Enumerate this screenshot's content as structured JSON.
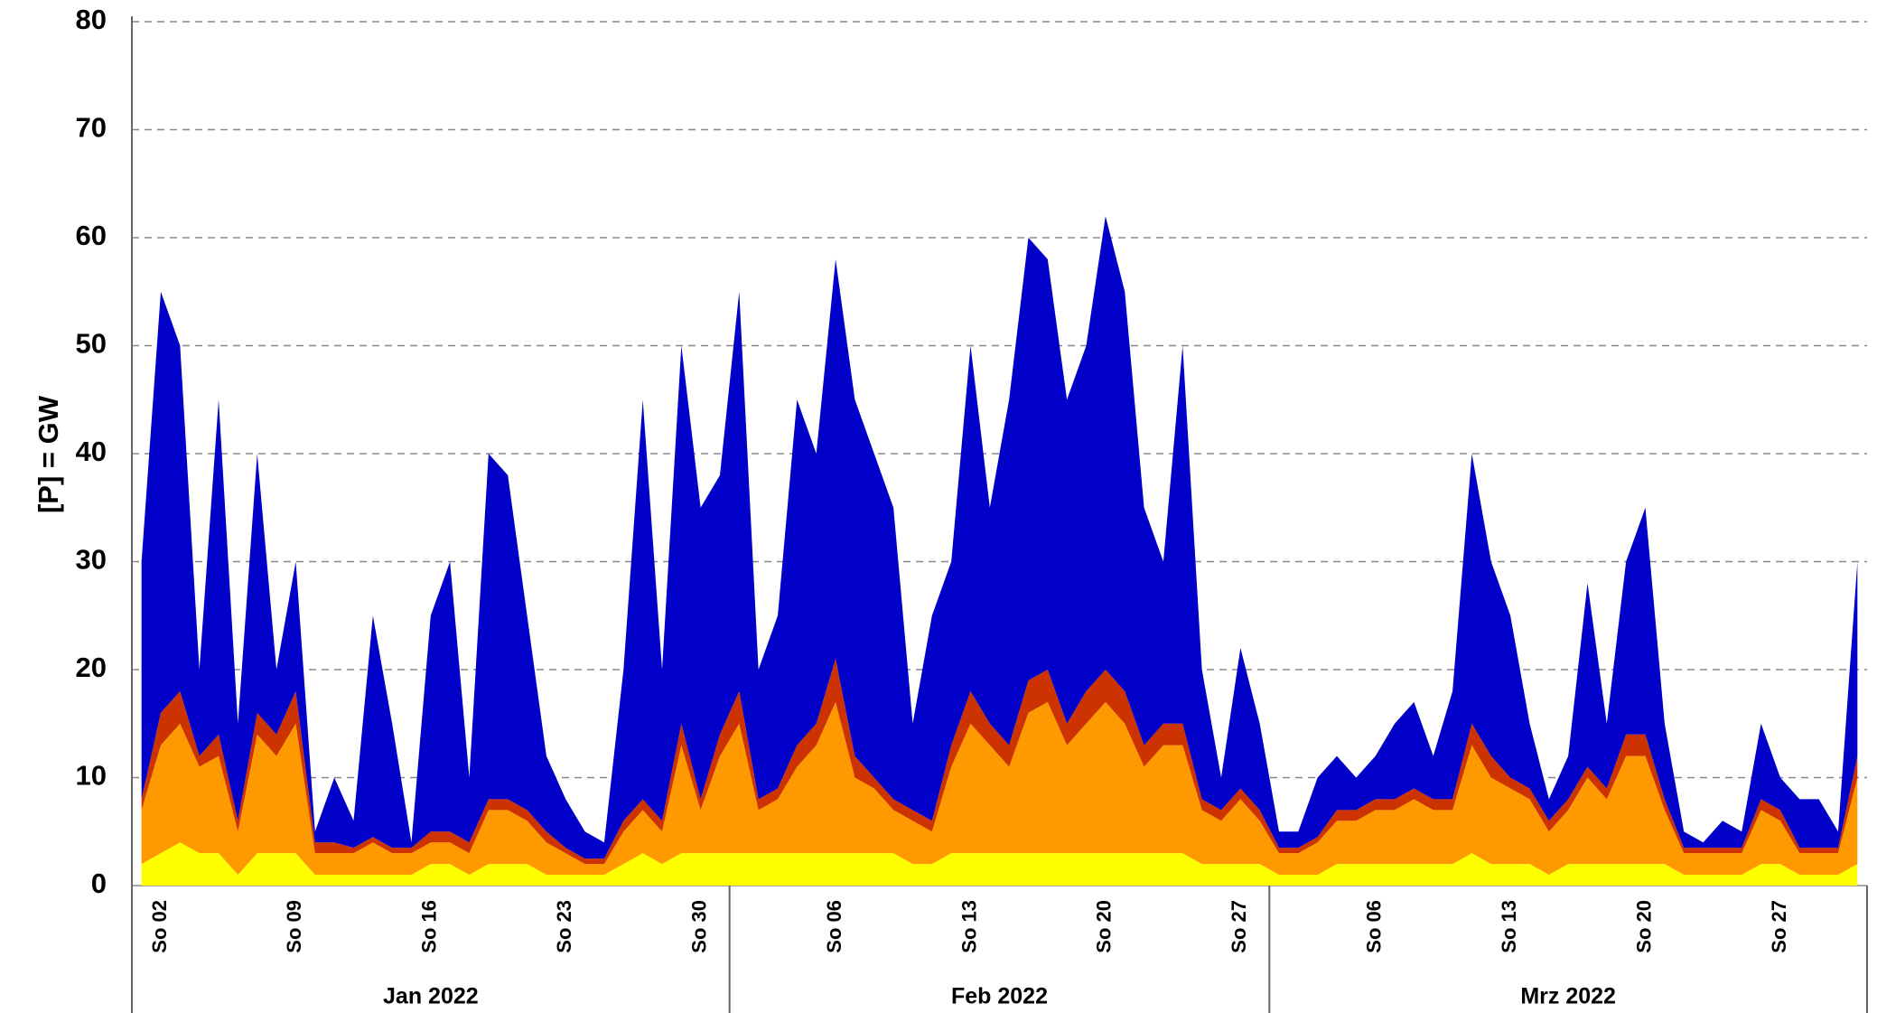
{
  "chart_data": {
    "type": "stacked_area",
    "y_title": "[P]  = GW",
    "x": [
      "2022-01-01",
      "2022-01-02",
      "2022-01-03",
      "2022-01-04",
      "2022-01-05",
      "2022-01-06",
      "2022-01-07",
      "2022-01-08",
      "2022-01-09",
      "2022-01-10",
      "2022-01-11",
      "2022-01-12",
      "2022-01-13",
      "2022-01-14",
      "2022-01-15",
      "2022-01-16",
      "2022-01-17",
      "2022-01-18",
      "2022-01-19",
      "2022-01-20",
      "2022-01-21",
      "2022-01-22",
      "2022-01-23",
      "2022-01-24",
      "2022-01-25",
      "2022-01-26",
      "2022-01-27",
      "2022-01-28",
      "2022-01-29",
      "2022-01-30",
      "2022-01-31",
      "2022-02-01",
      "2022-02-02",
      "2022-02-03",
      "2022-02-04",
      "2022-02-05",
      "2022-02-06",
      "2022-02-07",
      "2022-02-08",
      "2022-02-09",
      "2022-02-10",
      "2022-02-11",
      "2022-02-12",
      "2022-02-13",
      "2022-02-14",
      "2022-02-15",
      "2022-02-16",
      "2022-02-17",
      "2022-02-18",
      "2022-02-19",
      "2022-02-20",
      "2022-02-21",
      "2022-02-22",
      "2022-02-23",
      "2022-02-24",
      "2022-02-25",
      "2022-02-26",
      "2022-02-27",
      "2022-02-28",
      "2022-03-01",
      "2022-03-02",
      "2022-03-03",
      "2022-03-04",
      "2022-03-05",
      "2022-03-06",
      "2022-03-07",
      "2022-03-08",
      "2022-03-09",
      "2022-03-10",
      "2022-03-11",
      "2022-03-12",
      "2022-03-13",
      "2022-03-14",
      "2022-03-15",
      "2022-03-16",
      "2022-03-17",
      "2022-03-18",
      "2022-03-19",
      "2022-03-20",
      "2022-03-21",
      "2022-03-22",
      "2022-03-23",
      "2022-03-24",
      "2022-03-25",
      "2022-03-26",
      "2022-03-27",
      "2022-03-28",
      "2022-03-29",
      "2022-03-30",
      "2022-03-31"
    ],
    "series": [
      {
        "color": "#ffff00",
        "values": [
          2,
          3,
          4,
          3,
          3,
          1,
          3,
          3,
          3,
          1,
          1,
          1,
          1,
          1,
          1,
          2,
          2,
          1,
          2,
          2,
          2,
          1,
          1,
          1,
          1,
          2,
          3,
          2,
          3,
          3,
          3,
          3,
          3,
          3,
          3,
          3,
          3,
          3,
          3,
          3,
          2,
          2,
          3,
          3,
          3,
          3,
          3,
          3,
          3,
          3,
          3,
          3,
          3,
          3,
          3,
          2,
          2,
          2,
          2,
          1,
          1,
          1,
          2,
          2,
          2,
          2,
          2,
          2,
          2,
          3,
          2,
          2,
          2,
          1,
          2,
          2,
          2,
          2,
          2,
          2,
          1,
          1,
          1,
          1,
          2,
          2,
          1,
          1,
          1,
          2
        ]
      },
      {
        "color": "#ff9900",
        "values": [
          5,
          10,
          11,
          8,
          9,
          4,
          11,
          9,
          12,
          2,
          2,
          2,
          3,
          2,
          2,
          2,
          2,
          2,
          5,
          5,
          4,
          3,
          2,
          1,
          1,
          3,
          4,
          3,
          10,
          4,
          9,
          12,
          4,
          5,
          8,
          10,
          14,
          7,
          6,
          4,
          4,
          3,
          8,
          12,
          10,
          8,
          13,
          14,
          10,
          12,
          14,
          12,
          8,
          10,
          10,
          5,
          4,
          6,
          4,
          2,
          2,
          3,
          4,
          4,
          5,
          5,
          6,
          5,
          5,
          10,
          8,
          7,
          6,
          4,
          5,
          8,
          6,
          10,
          10,
          5,
          2,
          2,
          2,
          2,
          5,
          4,
          2,
          2,
          2,
          8
        ]
      },
      {
        "color": "#cc3300",
        "values": [
          1,
          3,
          3,
          1,
          2,
          1,
          2,
          2,
          3,
          1,
          1,
          0.5,
          0.5,
          0.5,
          0.5,
          1,
          1,
          1,
          1,
          1,
          1,
          1,
          0.5,
          0.5,
          0.5,
          1,
          1,
          1,
          2,
          1,
          2,
          3,
          1,
          1,
          2,
          2,
          4,
          2,
          1,
          1,
          1,
          1,
          2,
          3,
          2,
          2,
          3,
          3,
          2,
          3,
          3,
          3,
          2,
          2,
          2,
          1,
          1,
          1,
          1,
          0.5,
          0.5,
          0.5,
          1,
          1,
          1,
          1,
          1,
          1,
          1,
          2,
          2,
          1,
          1,
          1,
          1,
          1,
          1,
          2,
          2,
          1,
          0.5,
          0.5,
          0.5,
          0.5,
          1,
          1,
          0.5,
          0.5,
          0.5,
          2
        ]
      },
      {
        "color": "#0000c8",
        "values": [
          22,
          39,
          32,
          8,
          31,
          9,
          24,
          6,
          12,
          1,
          6,
          2.5,
          20.5,
          11.5,
          0.5,
          20,
          25,
          6,
          32,
          30,
          18,
          7,
          4.5,
          2.5,
          1.5,
          14,
          37,
          14,
          35,
          27,
          24,
          37,
          12,
          16,
          32,
          25,
          37,
          33,
          30,
          27,
          8,
          19,
          17,
          32,
          20,
          32,
          41,
          38,
          30,
          32,
          42,
          37,
          22,
          15,
          35,
          12,
          3,
          13,
          8,
          1.5,
          1.5,
          5.5,
          5,
          3,
          4,
          7,
          8,
          4,
          10,
          25,
          18,
          15,
          6,
          2,
          4,
          17,
          6,
          16,
          21,
          7,
          1.5,
          0.5,
          2.5,
          1.5,
          7,
          3,
          4.5,
          4.5,
          1.5,
          18
        ]
      }
    ],
    "xticks": [
      {
        "value": "2022-01-02",
        "label": "So 02"
      },
      {
        "value": "2022-01-09",
        "label": "So 09"
      },
      {
        "value": "2022-01-16",
        "label": "So 16"
      },
      {
        "value": "2022-01-23",
        "label": "So 23"
      },
      {
        "value": "2022-01-30",
        "label": "So 30"
      },
      {
        "value": "2022-02-06",
        "label": "So 06"
      },
      {
        "value": "2022-02-13",
        "label": "So 13"
      },
      {
        "value": "2022-02-20",
        "label": "So 20"
      },
      {
        "value": "2022-02-27",
        "label": "So 27"
      },
      {
        "value": "2022-03-06",
        "label": "So 06"
      },
      {
        "value": "2022-03-13",
        "label": "So 13"
      },
      {
        "value": "2022-03-20",
        "label": "So 20"
      },
      {
        "value": "2022-03-27",
        "label": "So 27"
      }
    ],
    "months": [
      "Jan 2022",
      "Feb 2022",
      "Mrz 2022"
    ],
    "ylim": [
      0,
      80
    ],
    "yticks": [
      0,
      10,
      20,
      30,
      40,
      50,
      60,
      70,
      80
    ],
    "grid": true
  }
}
